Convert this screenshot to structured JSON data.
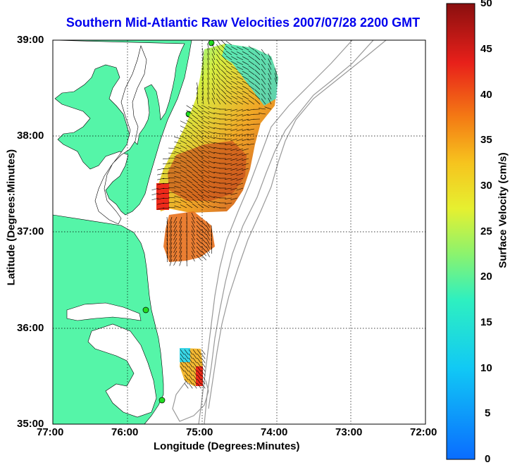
{
  "title": "Southern Mid-Atlantic Raw Velocities 2007/07/28 2200 GMT",
  "xlabel": "Longitude (Degrees:Minutes)",
  "ylabel": "Latitude (Degrees:Minutes)",
  "colorbar_label": "Surface Velocity (cm/s)",
  "x_ticks": [
    "77:00",
    "76:00",
    "75:00",
    "74:00",
    "73:00",
    "72:00"
  ],
  "y_ticks": [
    "39:00",
    "38:00",
    "37:00",
    "36:00",
    "35:00"
  ],
  "colorbar_ticks": [
    "50",
    "45",
    "40",
    "35",
    "30",
    "25",
    "20",
    "15",
    "10",
    "5",
    "0"
  ],
  "colors": {
    "title": "#0000ee",
    "land": "#55f5a8",
    "water": "#ffffff",
    "bathymetry": "#999999",
    "station": "#22dd22",
    "grid": "#000000"
  },
  "map": {
    "lon_range": [
      -77,
      -72
    ],
    "lat_range": [
      35,
      39
    ],
    "scale": "Surface Velocity 0-50 cm/s",
    "colormap": "jet"
  }
}
